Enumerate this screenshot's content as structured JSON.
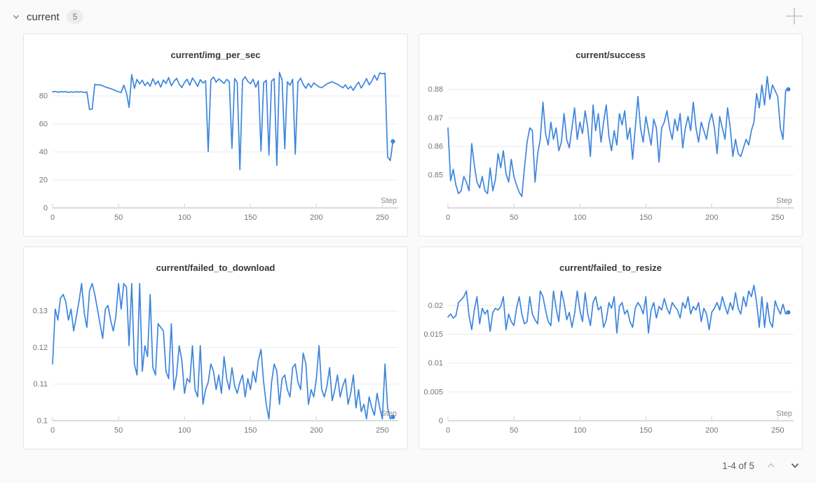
{
  "header": {
    "section_label": "current",
    "count_badge": "5"
  },
  "icons": {
    "section_collapse": "chevron-down",
    "add_panel": "plus",
    "pagination_prev": "chevron-up",
    "pagination_next": "chevron-down"
  },
  "pagination": {
    "label": "1-4 of 5",
    "prev_enabled": false,
    "next_enabled": true
  },
  "theme": {
    "line_color": "#3d85dd",
    "grid_color": "#ececec",
    "axis_color": "#cfcfcf",
    "tick_mark_color": "#dddddd",
    "tick_text_color": "#757575",
    "card_border": "#e4e4e4",
    "page_bg": "#fafafa"
  },
  "chart_data": [
    {
      "type": "line",
      "title": "current/img_per_sec",
      "xlabel": "Step",
      "legend": "none",
      "grid": "horizontal",
      "xticks": [
        0,
        50,
        100,
        150,
        200,
        250
      ],
      "yticks": [
        0,
        20,
        40,
        60,
        80
      ],
      "xlim": [
        0,
        262
      ],
      "ylim": [
        0,
        98
      ],
      "end_marker": true,
      "x": {
        "start": 0,
        "step": 2,
        "count": 130
      },
      "values": [
        83,
        83.2,
        82.6,
        83,
        82.8,
        83.1,
        82.5,
        82.9,
        82.6,
        83,
        82.7,
        83,
        82.4,
        82.8,
        70.3,
        70.6,
        88.3,
        87.8,
        87.9,
        87.2,
        86.4,
        85.8,
        85.2,
        84.5,
        83.6,
        83,
        82.4,
        87.6,
        82.2,
        71.8,
        95.2,
        85.4,
        91.8,
        88.6,
        91.2,
        87.4,
        89.8,
        86.9,
        92.3,
        88.1,
        90.6,
        86.2,
        91.4,
        88.8,
        93.1,
        87.2,
        90.3,
        92.6,
        88.4,
        85.9,
        89.7,
        91.9,
        87.6,
        92.8,
        90.1,
        86.8,
        91.6,
        89.2,
        90.8,
        40.2,
        91.5,
        93.4,
        89.8,
        92.1,
        90.6,
        88.9,
        91.8,
        90.2,
        42.5,
        92.4,
        89.6,
        27.3,
        91.2,
        93.6,
        90.4,
        88.7,
        91.9,
        86.2,
        90.8,
        40.6,
        89.4,
        91.2,
        37.8,
        90.6,
        92.3,
        30.4,
        96.8,
        91.4,
        42.2,
        90.1,
        87.6,
        91.8,
        38.4,
        89.9,
        92.6,
        88.2,
        85.4,
        88.9,
        86.1,
        89.3,
        87.8,
        86.4,
        85.9,
        87.2,
        88.6,
        89.4,
        90.2,
        89.1,
        88.3,
        87.1,
        85.8,
        87.9,
        84.9,
        86.8,
        83.9,
        87.4,
        89.8,
        85.6,
        88.7,
        92.4,
        87.9,
        90.6,
        94.8,
        91.2,
        96.4,
        95.8,
        96.2,
        36.5,
        33.8,
        47.5
      ]
    },
    {
      "type": "line",
      "title": "current/success",
      "xlabel": "Step",
      "legend": "none",
      "grid": "horizontal",
      "xticks": [
        0,
        50,
        100,
        150,
        200,
        250
      ],
      "yticks": [
        0.85,
        0.86,
        0.87,
        0.88
      ],
      "xlim": [
        0,
        262
      ],
      "ylim": [
        0.8385,
        0.8865
      ],
      "end_marker": true,
      "x": {
        "start": 0,
        "step": 2,
        "count": 130
      },
      "values": [
        0.8665,
        0.848,
        0.852,
        0.8465,
        0.8435,
        0.8445,
        0.8495,
        0.8475,
        0.8445,
        0.861,
        0.8535,
        0.8475,
        0.8455,
        0.8495,
        0.8445,
        0.8435,
        0.8525,
        0.8445,
        0.8485,
        0.8575,
        0.8525,
        0.8585,
        0.8505,
        0.8475,
        0.8555,
        0.8495,
        0.8465,
        0.844,
        0.8425,
        0.8525,
        0.8615,
        0.8665,
        0.8655,
        0.8475,
        0.8575,
        0.8625,
        0.8755,
        0.8645,
        0.8605,
        0.8685,
        0.8625,
        0.8665,
        0.8585,
        0.8615,
        0.8715,
        0.8625,
        0.8595,
        0.8665,
        0.8735,
        0.8625,
        0.8685,
        0.8645,
        0.8725,
        0.8665,
        0.8565,
        0.8745,
        0.8655,
        0.8715,
        0.8615,
        0.8685,
        0.8745,
        0.8635,
        0.8585,
        0.8655,
        0.8605,
        0.8715,
        0.8675,
        0.8725,
        0.8625,
        0.8665,
        0.8555,
        0.8665,
        0.8775,
        0.8665,
        0.8615,
        0.8705,
        0.8655,
        0.8605,
        0.8695,
        0.8665,
        0.8545,
        0.8665,
        0.8685,
        0.8725,
        0.8665,
        0.8625,
        0.8695,
        0.8655,
        0.8715,
        0.8595,
        0.8665,
        0.8705,
        0.8655,
        0.8755,
        0.8665,
        0.8615,
        0.8685,
        0.8655,
        0.8625,
        0.8685,
        0.8715,
        0.8665,
        0.8575,
        0.8705,
        0.8665,
        0.8625,
        0.8735,
        0.8665,
        0.8565,
        0.8625,
        0.8575,
        0.8565,
        0.8595,
        0.8625,
        0.8605,
        0.8655,
        0.8685,
        0.8785,
        0.8735,
        0.8815,
        0.8745,
        0.8845,
        0.8765,
        0.8815,
        0.8795,
        0.8775,
        0.8665,
        0.8625,
        0.8795,
        0.88
      ]
    },
    {
      "type": "line",
      "title": "current/failed_to_download",
      "xlabel": "Step",
      "legend": "none",
      "grid": "horizontal",
      "xticks": [
        0,
        50,
        100,
        150,
        200,
        250
      ],
      "yticks": [
        0.1,
        0.11,
        0.12,
        0.13
      ],
      "xlim": [
        0,
        262
      ],
      "ylim": [
        0.1,
        0.1375
      ],
      "end_marker": true,
      "x": {
        "start": 0,
        "step": 2,
        "count": 130
      },
      "values": [
        0.1155,
        0.1305,
        0.1275,
        0.1335,
        0.1345,
        0.1325,
        0.1275,
        0.1305,
        0.1245,
        0.1285,
        0.1325,
        0.1375,
        0.1295,
        0.1255,
        0.1355,
        0.1375,
        0.1345,
        0.1305,
        0.1265,
        0.1225,
        0.1305,
        0.1315,
        0.1275,
        0.1245,
        0.1285,
        0.1375,
        0.1305,
        0.1375,
        0.1365,
        0.1205,
        0.1375,
        0.1155,
        0.1125,
        0.1375,
        0.1135,
        0.1205,
        0.1175,
        0.1345,
        0.1145,
        0.1125,
        0.1265,
        0.1255,
        0.1245,
        0.1135,
        0.1115,
        0.1265,
        0.1085,
        0.1125,
        0.1205,
        0.1165,
        0.1075,
        0.1115,
        0.1105,
        0.1205,
        0.1085,
        0.1065,
        0.1205,
        0.1045,
        0.1085,
        0.1105,
        0.1155,
        0.1135,
        0.1085,
        0.1125,
        0.1075,
        0.1175,
        0.1115,
        0.1085,
        0.1145,
        0.1095,
        0.1075,
        0.1105,
        0.1125,
        0.1065,
        0.1115,
        0.1085,
        0.1135,
        0.1105,
        0.1165,
        0.1195,
        0.1105,
        0.1045,
        0.1005,
        0.1105,
        0.1155,
        0.1135,
        0.1045,
        0.1115,
        0.1125,
        0.1085,
        0.1065,
        0.1145,
        0.1155,
        0.1105,
        0.1085,
        0.1185,
        0.1155,
        0.1045,
        0.1085,
        0.1065,
        0.1115,
        0.1205,
        0.1085,
        0.1065,
        0.1095,
        0.1145,
        0.1055,
        0.1085,
        0.1125,
        0.1065,
        0.1095,
        0.1115,
        0.1045,
        0.1075,
        0.1125,
        0.1035,
        0.1085,
        0.1025,
        0.1045,
        0.1005,
        0.1065,
        0.1035,
        0.1015,
        0.1075,
        0.1035,
        0.1005,
        0.1155,
        0.1035,
        0.1005,
        0.101
      ]
    },
    {
      "type": "line",
      "title": "current/failed_to_resize",
      "xlabel": "Step",
      "legend": "none",
      "grid": "horizontal",
      "xticks": [
        0,
        50,
        100,
        150,
        200,
        250
      ],
      "yticks": [
        0,
        0.005,
        0.01,
        0.015,
        0.02
      ],
      "xlim": [
        0,
        262
      ],
      "ylim": [
        0,
        0.0238
      ],
      "end_marker": true,
      "x": {
        "start": 0,
        "step": 2,
        "count": 130
      },
      "values": [
        0.018,
        0.0185,
        0.0178,
        0.0182,
        0.0205,
        0.021,
        0.0215,
        0.0225,
        0.0182,
        0.0158,
        0.0192,
        0.0215,
        0.0168,
        0.0195,
        0.0185,
        0.0192,
        0.0155,
        0.0188,
        0.0195,
        0.0192,
        0.0198,
        0.0215,
        0.0158,
        0.0185,
        0.0172,
        0.0165,
        0.0195,
        0.0215,
        0.0185,
        0.0168,
        0.0172,
        0.0215,
        0.0185,
        0.0175,
        0.0168,
        0.0225,
        0.0215,
        0.0192,
        0.0172,
        0.0165,
        0.0225,
        0.0195,
        0.0172,
        0.0225,
        0.0205,
        0.0175,
        0.0188,
        0.0162,
        0.0185,
        0.0225,
        0.0192,
        0.0172,
        0.0222,
        0.0185,
        0.0165,
        0.0205,
        0.0215,
        0.0192,
        0.0198,
        0.0162,
        0.0175,
        0.0205,
        0.0195,
        0.0215,
        0.0152,
        0.0198,
        0.0205,
        0.0185,
        0.0192,
        0.0172,
        0.0162,
        0.0195,
        0.0205,
        0.0198,
        0.0185,
        0.0215,
        0.0152,
        0.0192,
        0.0205,
        0.0178,
        0.0198,
        0.0192,
        0.0212,
        0.0195,
        0.0185,
        0.0205,
        0.0198,
        0.0192,
        0.0178,
        0.0205,
        0.0195,
        0.0215,
        0.0185,
        0.0198,
        0.0192,
        0.0205,
        0.0172,
        0.0195,
        0.0185,
        0.0158,
        0.0188,
        0.0195,
        0.0205,
        0.0192,
        0.0215,
        0.0198,
        0.0185,
        0.0205,
        0.0192,
        0.0222,
        0.0195,
        0.0185,
        0.0215,
        0.0198,
        0.0225,
        0.0215,
        0.0235,
        0.0205,
        0.0162,
        0.0215,
        0.0162,
        0.0205,
        0.0172,
        0.0162,
        0.0208,
        0.0195,
        0.0185,
        0.0202,
        0.0185,
        0.0188
      ]
    }
  ]
}
